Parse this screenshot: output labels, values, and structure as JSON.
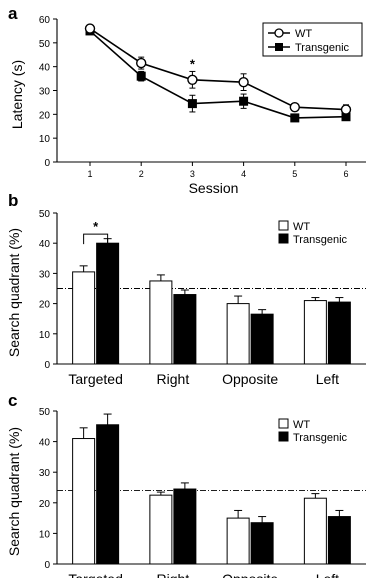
{
  "chart_data": [
    {
      "panel_label": "a",
      "type": "line",
      "x": [
        1,
        2,
        3,
        4,
        5,
        6
      ],
      "xlabel": "Session",
      "ylabel": "Latency (s)",
      "ylim": [
        0,
        60
      ],
      "yticks": [
        0,
        10,
        20,
        30,
        40,
        50,
        60
      ],
      "grid": false,
      "legend_position": "top-right",
      "series": [
        {
          "name": "WT",
          "marker": "open-circle",
          "values": [
            56,
            41.5,
            34.5,
            33.5,
            23,
            22
          ],
          "errors": [
            1.5,
            2.5,
            3.5,
            3.5,
            1.5,
            2
          ]
        },
        {
          "name": "Transgenic",
          "marker": "filled-square",
          "values": [
            55,
            36,
            24.5,
            25.5,
            18.5,
            19
          ],
          "errors": [
            1.5,
            2,
            3.5,
            3,
            1.5,
            1.5
          ]
        }
      ],
      "annotations": [
        {
          "text": "*",
          "x": 3,
          "y": 41
        }
      ]
    },
    {
      "panel_label": "b",
      "type": "bar",
      "categories": [
        "Targeted",
        "Right",
        "Opposite",
        "Left"
      ],
      "ylabel": "Search quadrant (%)",
      "ylim": [
        0,
        50
      ],
      "yticks": [
        0,
        10,
        20,
        30,
        40,
        50
      ],
      "grid": false,
      "legend_position": "top-right",
      "reference_line": 25,
      "series": [
        {
          "name": "WT",
          "fill": "white",
          "values": [
            30.5,
            27.5,
            20,
            21
          ],
          "errors": [
            2,
            2,
            2.5,
            1
          ]
        },
        {
          "name": "Transgenic",
          "fill": "black",
          "values": [
            40,
            23,
            16.5,
            20.5
          ],
          "errors": [
            1.5,
            1.5,
            1.5,
            1.5
          ]
        }
      ],
      "significance": [
        {
          "text": "*",
          "category": "Targeted",
          "y": 47
        }
      ]
    },
    {
      "panel_label": "c",
      "type": "bar",
      "categories": [
        "Targeted",
        "Right",
        "Opposite",
        "Left"
      ],
      "ylabel": "Search quadrant (%)",
      "ylim": [
        0,
        50
      ],
      "yticks": [
        0,
        10,
        20,
        30,
        40,
        50
      ],
      "grid": false,
      "legend_position": "top-right",
      "reference_line": 24,
      "series": [
        {
          "name": "WT",
          "fill": "white",
          "values": [
            41,
            22.5,
            15,
            21.5
          ],
          "errors": [
            3.5,
            1,
            2.5,
            1.5
          ]
        },
        {
          "name": "Transgenic",
          "fill": "black",
          "values": [
            45.5,
            24.5,
            13.5,
            15.5
          ],
          "errors": [
            3.5,
            2,
            2,
            2
          ]
        }
      ]
    }
  ]
}
